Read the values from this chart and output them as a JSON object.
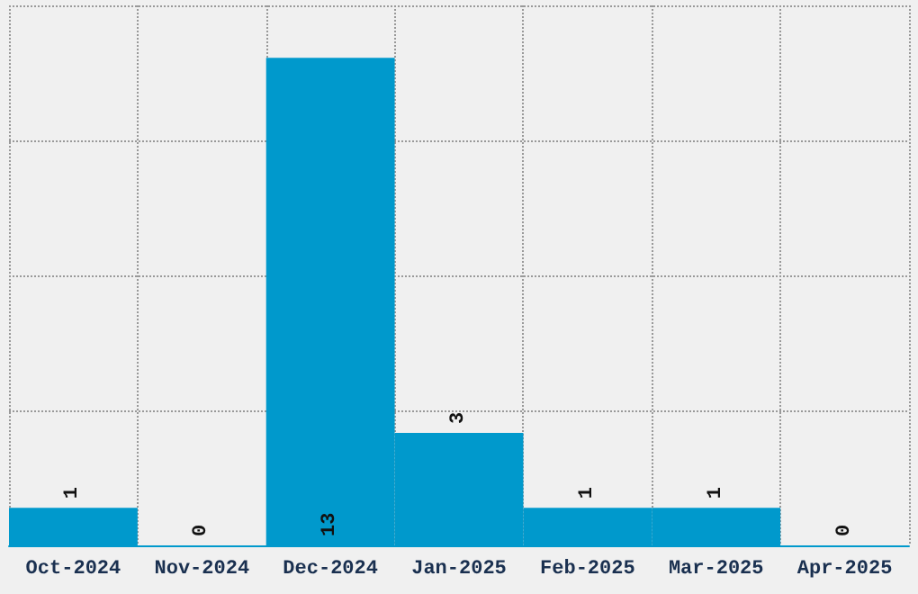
{
  "chart_data": {
    "type": "bar",
    "categories": [
      "Oct-2024",
      "Nov-2024",
      "Dec-2024",
      "Jan-2025",
      "Feb-2025",
      "Mar-2025",
      "Apr-2025"
    ],
    "values": [
      1,
      0,
      13,
      3,
      1,
      1,
      0
    ],
    "color": "#0099cc",
    "data_labels": true,
    "grid": true,
    "tick_labels": "x",
    "ylim": [
      0,
      14.4
    ],
    "yticks": [
      {
        "value": 0,
        "label": null
      },
      {
        "value": 3.6,
        "label": null
      },
      {
        "value": 7.2,
        "label": null
      },
      {
        "value": 10.8,
        "label": null
      },
      {
        "value": 14.4,
        "label": null
      }
    ]
  }
}
